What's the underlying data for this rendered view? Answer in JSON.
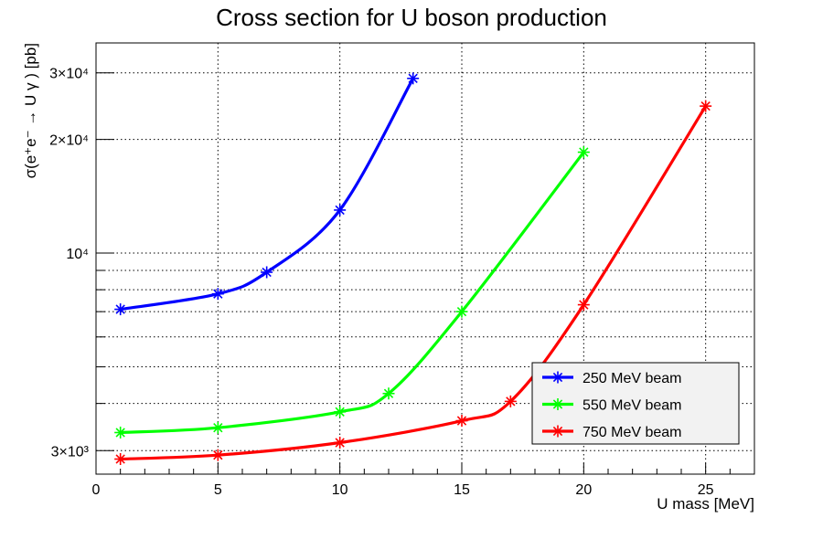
{
  "chart_data": {
    "type": "line",
    "title": "Cross section for U boson production",
    "xlabel": "U mass [MeV]",
    "ylabel": "σ(e⁺e⁻ → U γ ) [pb]",
    "xlim": [
      0,
      27
    ],
    "ylim": [
      2600,
      36000
    ],
    "y_scale": "log",
    "grid": true,
    "legend_placement": "bottom-right",
    "x_ticks": [
      0,
      5,
      10,
      15,
      20,
      25
    ],
    "x_tick_labels": [
      "0",
      "5",
      "10",
      "15",
      "20",
      "25"
    ],
    "y_ticks": [
      3000,
      10000,
      20000,
      30000
    ],
    "y_tick_labels": [
      "3×10³",
      "10⁴",
      "2×10⁴",
      "3×10⁴"
    ],
    "y_minor_gridlines": [
      4000,
      5000,
      6000,
      7000,
      8000,
      9000
    ],
    "series": [
      {
        "name": "250 MeV beam",
        "color": "#0000ff",
        "marker": "asterisk",
        "x": [
          1,
          5,
          7,
          10,
          13
        ],
        "y": [
          7100,
          7800,
          8900,
          13000,
          29000
        ]
      },
      {
        "name": "550 MeV beam",
        "color": "#00ff00",
        "marker": "asterisk",
        "x": [
          1,
          5,
          10,
          12,
          15,
          20
        ],
        "y": [
          3350,
          3450,
          3800,
          4250,
          7000,
          18500
        ]
      },
      {
        "name": "750 MeV beam",
        "color": "#ff0000",
        "marker": "asterisk",
        "x": [
          1,
          5,
          10,
          15,
          17,
          20,
          25
        ],
        "y": [
          2850,
          2920,
          3150,
          3600,
          4050,
          7300,
          24500
        ]
      }
    ]
  }
}
